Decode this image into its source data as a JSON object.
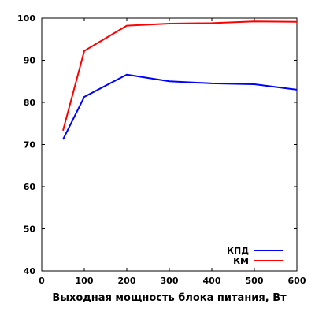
{
  "chart_data": {
    "type": "line",
    "title": "",
    "xlabel": "Выходная мощность блока питания, Вт",
    "ylabel": "",
    "xlim": [
      0,
      600
    ],
    "ylim": [
      40,
      100
    ],
    "xticks": [
      0,
      100,
      200,
      300,
      400,
      500,
      600
    ],
    "yticks": [
      40,
      50,
      60,
      70,
      80,
      90,
      100
    ],
    "grid": false,
    "legend_position": "bottom-right",
    "series": [
      {
        "name": "КПД",
        "color": "#0000ff",
        "x": [
          50,
          100,
          200,
          300,
          400,
          500,
          600
        ],
        "y": [
          71.2,
          81.3,
          86.6,
          85.0,
          84.5,
          84.3,
          83.0
        ]
      },
      {
        "name": "КМ",
        "color": "#ff0000",
        "x": [
          50,
          100,
          200,
          300,
          400,
          500,
          600
        ],
        "y": [
          73.3,
          92.2,
          98.2,
          98.7,
          98.8,
          99.2,
          99.1
        ]
      }
    ]
  }
}
